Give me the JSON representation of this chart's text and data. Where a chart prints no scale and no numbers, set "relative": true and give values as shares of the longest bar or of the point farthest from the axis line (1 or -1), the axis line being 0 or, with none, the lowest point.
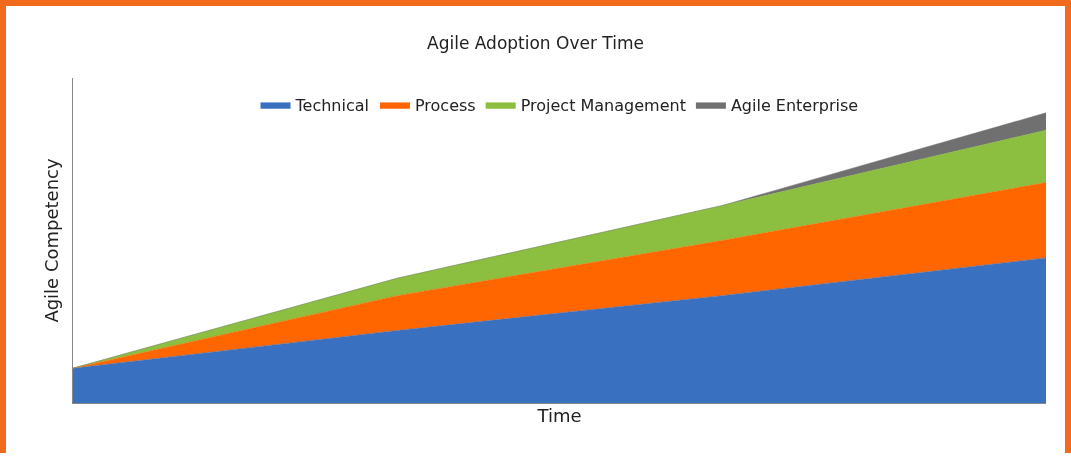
{
  "chart_data": {
    "type": "area",
    "title": "Agile Adoption Over Time",
    "xlabel": "Time",
    "ylabel": "Agile Competency",
    "categories": [
      null,
      null,
      null,
      null
    ],
    "relative": true,
    "stacked": true,
    "legend": "top",
    "grid": false,
    "tick_labels": false,
    "series": [
      {
        "name": "Technical",
        "color": "#3a70c0",
        "values": [
          0.12,
          0.25,
          0.37,
          0.5
        ]
      },
      {
        "name": "Process",
        "color": "#ff6600",
        "values": [
          0,
          0.12,
          0.19,
          0.26
        ]
      },
      {
        "name": "Project Management",
        "color": "#8cbf3f",
        "values": [
          0,
          0.06,
          0.12,
          0.18
        ]
      },
      {
        "name": "Agile Enterprise",
        "color": "#707070",
        "values": [
          0,
          0,
          0,
          0.06
        ]
      }
    ]
  }
}
